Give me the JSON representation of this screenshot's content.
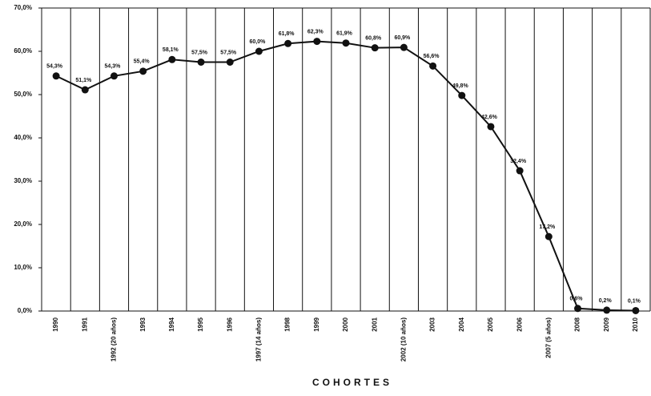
{
  "chart_data": {
    "type": "line",
    "x_label": "COHORTES",
    "categories": [
      "1990",
      "1991",
      "1992 (20 años)",
      "1993",
      "1994",
      "1995",
      "1996",
      "1997 (14 años)",
      "1998",
      "1999",
      "2000",
      "2001",
      "2002 (10 años)",
      "2003",
      "2004",
      "2005",
      "2006",
      "2007 (5 años)",
      "2008",
      "2009",
      "2010"
    ],
    "values": [
      54.3,
      51.1,
      54.3,
      55.4,
      58.1,
      57.5,
      57.5,
      60.0,
      61.8,
      62.3,
      61.9,
      60.8,
      60.9,
      56.6,
      49.8,
      42.6,
      32.4,
      17.2,
      0.6,
      0.2,
      0.1
    ],
    "value_labels": [
      "54,3%",
      "51,1%",
      "54,3%",
      "55,4%",
      "58,1%",
      "57,5%",
      "57,5%",
      "60,0%",
      "61,8%",
      "62,3%",
      "61,9%",
      "60,8%",
      "60,9%",
      "56,6%",
      "49,8%",
      "42,6%",
      "32,4%",
      "17,2%",
      "0,6%",
      "0,2%",
      "0,1%"
    ],
    "color": "#111111",
    "ylim": [
      0,
      70
    ],
    "yticks": [
      {
        "value": 0,
        "label": "0,0%"
      },
      {
        "value": 10,
        "label": "10,0%"
      },
      {
        "value": 20,
        "label": "20,0%"
      },
      {
        "value": 30,
        "label": "30,0%"
      },
      {
        "value": 40,
        "label": "40,0%"
      },
      {
        "value": 50,
        "label": "50,0%"
      },
      {
        "value": 60,
        "label": "60,0%"
      },
      {
        "value": 70,
        "label": "70,0%"
      }
    ],
    "vertical_grid": true
  }
}
